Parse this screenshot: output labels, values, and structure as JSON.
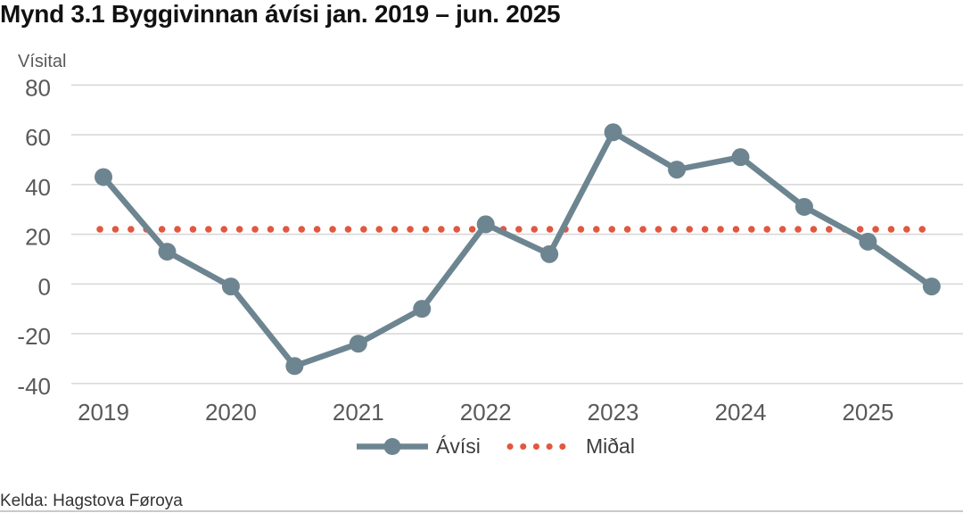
{
  "title": "Mynd 3.1 Byggivinnan ávísi jan. 2019 – jun. 2025",
  "source": "Kelda: Hagstova Føroya",
  "legend": {
    "series_label": "Ávísi",
    "mean_label": "Miðal"
  },
  "colors": {
    "series": "#6D8591",
    "mean": "#E25740",
    "grid": "#D9D9D9",
    "tick_text": "#595959",
    "axis_title_text": "#595959",
    "legend_text": "#3D3D3D"
  },
  "chart_data": {
    "type": "line",
    "title": "Mynd 3.1 Byggivinnan ávísi jan. 2019 – jun. 2025",
    "xlabel": "",
    "ylabel": "Vísital",
    "categories": [
      "jan. 2019",
      "jun. 2019",
      "jan. 2020",
      "jun. 2020",
      "jan. 2021",
      "jun. 2021",
      "jan. 2022",
      "jun. 2022",
      "jan. 2023",
      "jun. 2023",
      "jan. 2024",
      "jun. 2024",
      "jan. 2025",
      "jun. 2025"
    ],
    "series": [
      {
        "name": "Ávísi",
        "values": [
          43,
          13,
          -1,
          -33,
          -24,
          -10,
          24,
          12,
          61,
          46,
          51,
          31,
          17,
          -1
        ]
      }
    ],
    "mean_line": {
      "name": "Miðal",
      "value": 22
    },
    "x_tick_labels": [
      "2019",
      "2020",
      "2021",
      "2022",
      "2023",
      "2024",
      "2025"
    ],
    "y_ticks": [
      80,
      60,
      40,
      20,
      0,
      -20,
      -40
    ],
    "ylim": [
      -40,
      80
    ],
    "grid": true,
    "legend_position": "bottom"
  }
}
